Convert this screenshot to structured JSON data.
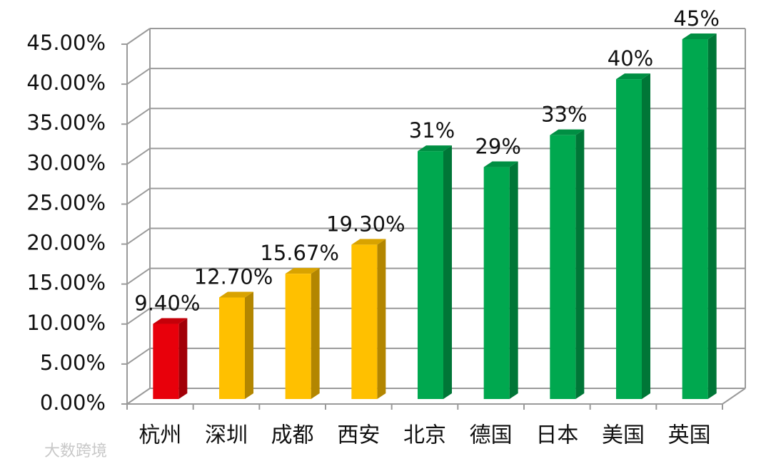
{
  "chart_data": {
    "type": "bar3d",
    "categories": [
      "杭州",
      "深圳",
      "成都",
      "西安",
      "北京",
      "德国",
      "日本",
      "美国",
      "英国"
    ],
    "values": [
      9.4,
      12.7,
      15.67,
      19.3,
      31,
      29,
      33,
      40,
      45
    ],
    "value_labels": [
      "9.40%",
      "12.70%",
      "15.67%",
      "19.30%",
      "31%",
      "29%",
      "33%",
      "40%",
      "45%"
    ],
    "colors": [
      "#e8000b",
      "#ffc000",
      "#ffc000",
      "#ffc000",
      "#00a84f",
      "#00a84f",
      "#00a84f",
      "#00a84f",
      "#00a84f"
    ],
    "ylim": [
      0,
      45
    ],
    "yticks": [
      {
        "value": 0,
        "label": "0.00%"
      },
      {
        "value": 5,
        "label": "5.00%"
      },
      {
        "value": 10,
        "label": "10.00%"
      },
      {
        "value": 15,
        "label": "15.00%"
      },
      {
        "value": 20,
        "label": "20.00%"
      },
      {
        "value": 25,
        "label": "25.00%"
      },
      {
        "value": 30,
        "label": "30.00%"
      },
      {
        "value": 35,
        "label": "35.00%"
      },
      {
        "value": 40,
        "label": "40.00%"
      },
      {
        "value": 45,
        "label": "45.00%"
      }
    ],
    "grid": true
  },
  "watermark": "大数跨境"
}
